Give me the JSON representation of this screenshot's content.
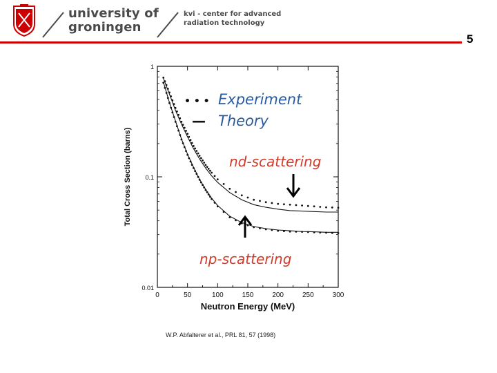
{
  "header": {
    "university_line1": "university of",
    "university_line2": "groningen",
    "kvi_line1": "kvi - center for advanced",
    "kvi_line2": "radiation technology",
    "accent_color": "#cc0000"
  },
  "page_number": "5",
  "citation": "W.P. Abfalterer et al., PRL 81, 57 (1998)",
  "chart_data": {
    "type": "line",
    "xlabel": "Neutron Energy (MeV)",
    "ylabel": "Total Cross Section (barns)",
    "xlim": [
      0,
      300
    ],
    "ylim": [
      0.01,
      1
    ],
    "yscale": "log",
    "x_ticks": [
      "0",
      "50",
      "100",
      "150",
      "200",
      "250",
      "300"
    ],
    "y_ticks": [
      "0.01",
      "0.1",
      "1"
    ],
    "legend": {
      "experiment_symbol": "• • •",
      "experiment_label": "Experiment",
      "theory_symbol": "—",
      "theory_label": "Theory",
      "text_color": "#2b5b9e"
    },
    "annotations": {
      "nd": "nd-scattering",
      "np": "np-scattering",
      "color": "#d23a2a"
    },
    "series": [
      {
        "name": "nd-scattering",
        "style": "both",
        "x": [
          10,
          20,
          30,
          40,
          50,
          60,
          70,
          80,
          90,
          100,
          120,
          140,
          160,
          180,
          200,
          220,
          240,
          260,
          280,
          300
        ],
        "theory": [
          0.78,
          0.56,
          0.4,
          0.3,
          0.23,
          0.18,
          0.145,
          0.12,
          0.102,
          0.089,
          0.072,
          0.062,
          0.056,
          0.053,
          0.051,
          0.0495,
          0.049,
          0.0485,
          0.048,
          0.048
        ],
        "experiment": [
          0.79,
          0.58,
          0.42,
          0.315,
          0.245,
          0.19,
          0.155,
          0.128,
          0.109,
          0.095,
          0.078,
          0.068,
          0.062,
          0.059,
          0.057,
          0.056,
          0.055,
          0.054,
          0.053,
          0.0525
        ]
      },
      {
        "name": "np-scattering",
        "style": "both",
        "x": [
          10,
          20,
          30,
          40,
          50,
          60,
          70,
          80,
          90,
          100,
          120,
          140,
          160,
          180,
          200,
          220,
          240,
          260,
          280,
          300
        ],
        "theory": [
          0.72,
          0.47,
          0.32,
          0.22,
          0.16,
          0.122,
          0.095,
          0.077,
          0.064,
          0.055,
          0.044,
          0.0385,
          0.0355,
          0.034,
          0.033,
          0.0325,
          0.032,
          0.0318,
          0.0315,
          0.0315
        ],
        "experiment": [
          0.71,
          0.465,
          0.315,
          0.218,
          0.158,
          0.12,
          0.094,
          0.076,
          0.063,
          0.054,
          0.043,
          0.038,
          0.035,
          0.0335,
          0.0325,
          0.032,
          0.0318,
          0.0315,
          0.0312,
          0.031
        ]
      }
    ]
  }
}
